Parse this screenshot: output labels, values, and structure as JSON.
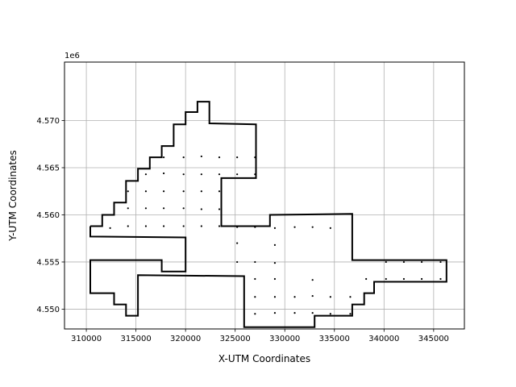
{
  "chart_data": {
    "type": "scatter",
    "xlabel": "X-UTM Coordinates",
    "ylabel": "Y-UTM Coordinates",
    "y_offset_label": "1e6",
    "y_scale": 1000000,
    "xlim": [
      307800,
      348100
    ],
    "ylim": [
      4547900,
      4576200
    ],
    "x_ticks": [
      310000,
      315000,
      320000,
      325000,
      330000,
      335000,
      340000,
      345000
    ],
    "x_tick_labels": [
      "310000",
      "315000",
      "320000",
      "325000",
      "330000",
      "335000",
      "340000",
      "345000"
    ],
    "y_ticks": [
      4550000,
      4555000,
      4560000,
      4565000,
      4570000
    ],
    "y_tick_labels": [
      "4.550",
      "4.555",
      "4.560",
      "4.565",
      "4.570"
    ],
    "grid": true,
    "boundary_color": "#000000",
    "point_color": "#000000",
    "boundary": [
      [
        310400,
        4558800
      ],
      [
        311600,
        4558800
      ],
      [
        311600,
        4560000
      ],
      [
        312800,
        4560000
      ],
      [
        312800,
        4561300
      ],
      [
        314000,
        4561300
      ],
      [
        314000,
        4563600
      ],
      [
        315200,
        4563600
      ],
      [
        315200,
        4564900
      ],
      [
        316400,
        4564900
      ],
      [
        316400,
        4566100
      ],
      [
        317600,
        4566100
      ],
      [
        317600,
        4567300
      ],
      [
        318800,
        4567300
      ],
      [
        318800,
        4569600
      ],
      [
        320000,
        4569600
      ],
      [
        320000,
        4570900
      ],
      [
        321200,
        4570900
      ],
      [
        321200,
        4572000
      ],
      [
        322400,
        4572000
      ],
      [
        322400,
        4569700
      ],
      [
        327100,
        4569600
      ],
      [
        327100,
        4563900
      ],
      [
        323600,
        4563900
      ],
      [
        323600,
        4558800
      ],
      [
        328500,
        4558800
      ],
      [
        328500,
        4560000
      ],
      [
        336800,
        4560100
      ],
      [
        336800,
        4555200
      ],
      [
        346300,
        4555200
      ],
      [
        346300,
        4552900
      ],
      [
        339000,
        4552900
      ],
      [
        339000,
        4551700
      ],
      [
        338000,
        4551700
      ],
      [
        338000,
        4550500
      ],
      [
        336800,
        4550500
      ],
      [
        336800,
        4549300
      ],
      [
        333000,
        4549300
      ],
      [
        333000,
        4548100
      ],
      [
        325900,
        4548100
      ],
      [
        325900,
        4553500
      ],
      [
        315200,
        4553600
      ],
      [
        315200,
        4549300
      ],
      [
        314000,
        4549300
      ],
      [
        314000,
        4550500
      ],
      [
        312800,
        4550500
      ],
      [
        312800,
        4551700
      ],
      [
        310400,
        4551700
      ],
      [
        310400,
        4555200
      ],
      [
        317600,
        4555200
      ],
      [
        317600,
        4554000
      ],
      [
        320000,
        4554000
      ],
      [
        320000,
        4557600
      ],
      [
        310400,
        4557700
      ],
      [
        310400,
        4558800
      ]
    ],
    "points": [
      [
        317800,
        4566100
      ],
      [
        319800,
        4566100
      ],
      [
        321600,
        4566200
      ],
      [
        323400,
        4566100
      ],
      [
        325200,
        4566100
      ],
      [
        327000,
        4566100
      ],
      [
        316000,
        4564300
      ],
      [
        317800,
        4564400
      ],
      [
        319800,
        4564300
      ],
      [
        321600,
        4564300
      ],
      [
        323400,
        4564300
      ],
      [
        325200,
        4564300
      ],
      [
        327000,
        4564300
      ],
      [
        314200,
        4562500
      ],
      [
        316000,
        4562500
      ],
      [
        317800,
        4562500
      ],
      [
        319800,
        4562500
      ],
      [
        321600,
        4562500
      ],
      [
        323400,
        4562500
      ],
      [
        314200,
        4560700
      ],
      [
        316000,
        4560700
      ],
      [
        317800,
        4560700
      ],
      [
        319800,
        4560700
      ],
      [
        321600,
        4560600
      ],
      [
        323400,
        4560600
      ],
      [
        312400,
        4558600
      ],
      [
        314200,
        4558800
      ],
      [
        316000,
        4558800
      ],
      [
        317800,
        4558800
      ],
      [
        319800,
        4558800
      ],
      [
        321600,
        4558800
      ],
      [
        323400,
        4558800
      ],
      [
        325200,
        4558700
      ],
      [
        327000,
        4558700
      ],
      [
        329000,
        4558600
      ],
      [
        331000,
        4558700
      ],
      [
        332800,
        4558700
      ],
      [
        334600,
        4558600
      ],
      [
        325200,
        4557000
      ],
      [
        329000,
        4556800
      ],
      [
        325200,
        4555000
      ],
      [
        327000,
        4555000
      ],
      [
        329000,
        4554900
      ],
      [
        338200,
        4553200
      ],
      [
        340200,
        4555000
      ],
      [
        340200,
        4553200
      ],
      [
        342000,
        4555000
      ],
      [
        342000,
        4553200
      ],
      [
        343800,
        4555000
      ],
      [
        343800,
        4553200
      ],
      [
        345700,
        4555000
      ],
      [
        345700,
        4553200
      ],
      [
        327000,
        4553200
      ],
      [
        329000,
        4553200
      ],
      [
        332800,
        4553100
      ],
      [
        327000,
        4551300
      ],
      [
        329000,
        4551300
      ],
      [
        331000,
        4551300
      ],
      [
        332800,
        4551400
      ],
      [
        334600,
        4551300
      ],
      [
        336600,
        4551300
      ],
      [
        327000,
        4549500
      ],
      [
        329000,
        4549600
      ],
      [
        331000,
        4549600
      ],
      [
        332800,
        4549600
      ],
      [
        334600,
        4549500
      ],
      [
        336600,
        4549500
      ]
    ]
  }
}
